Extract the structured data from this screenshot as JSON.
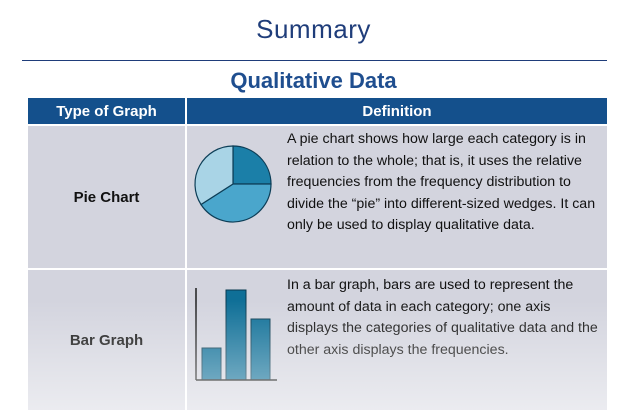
{
  "slide": {
    "title": "Summary",
    "subtitle": "Qualitative Data"
  },
  "table": {
    "headers": [
      "Type of Graph",
      "Definition"
    ],
    "rows": [
      {
        "type": "Pie Chart",
        "definition": "A pie chart shows how large each category is in relation to the whole; that is, it uses the relative frequencies from the frequency distribution to divide the “pie” into different-sized wedges. It can only be used to display qualitative data.",
        "icon": "pie-chart-icon"
      },
      {
        "type": "Bar Graph",
        "definition": "In a bar graph, bars are used to represent the amount of data in each category; one axis displays the categories of qualitative data and the other axis displays the frequencies.",
        "icon": "bar-graph-icon"
      }
    ]
  },
  "colors": {
    "title": "#1f3d7a",
    "header_bg": "#14508c",
    "cell_bg": "#d3d4de",
    "pie_dark": "#1b7fa8",
    "pie_mid": "#4aa6cc",
    "pie_light": "#a9d4e6",
    "bar_fill": "#0f6f97"
  }
}
